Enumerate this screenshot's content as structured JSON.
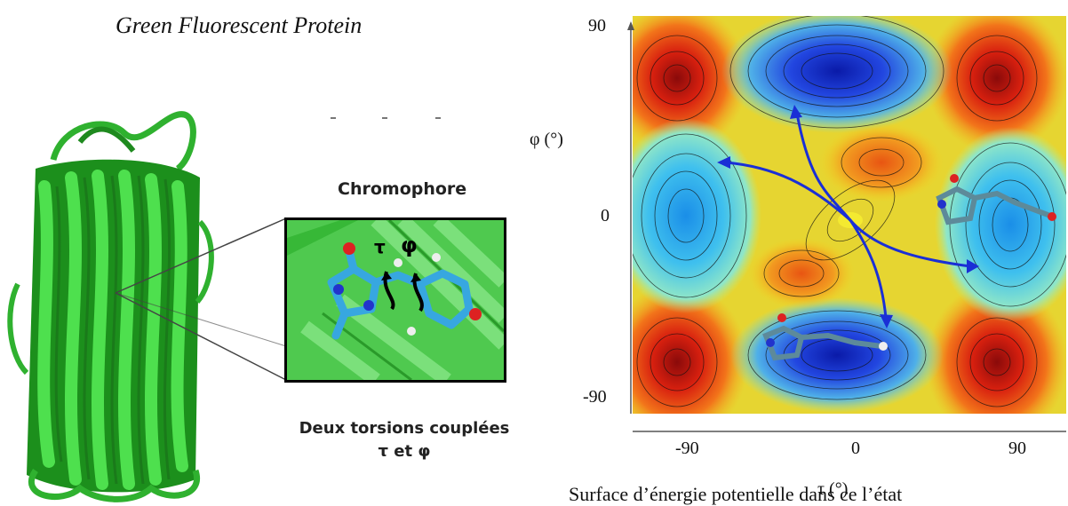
{
  "figure": {
    "title": "Green Fluorescent Protein",
    "chromophore_label": "Chromophore",
    "tau_symbol": "τ",
    "phi_symbol": "φ",
    "caption_line1": "Deux torsions couplées",
    "caption_line2": "τ et φ",
    "map": {
      "y_axis_label": "φ (°)",
      "x_axis_label": "τ (°)",
      "y_ticks": [
        "90",
        "0",
        "-90"
      ],
      "x_ticks": [
        "-90",
        "0",
        "90"
      ],
      "bottom_caption": "Surface d’énergie potentielle dans ce l’état"
    },
    "colors": {
      "protein_green": "#2fb12f",
      "map_red": "#c81a10",
      "map_blue": "#1c2fd0",
      "arrow_blue": "#1a2fd6"
    }
  }
}
